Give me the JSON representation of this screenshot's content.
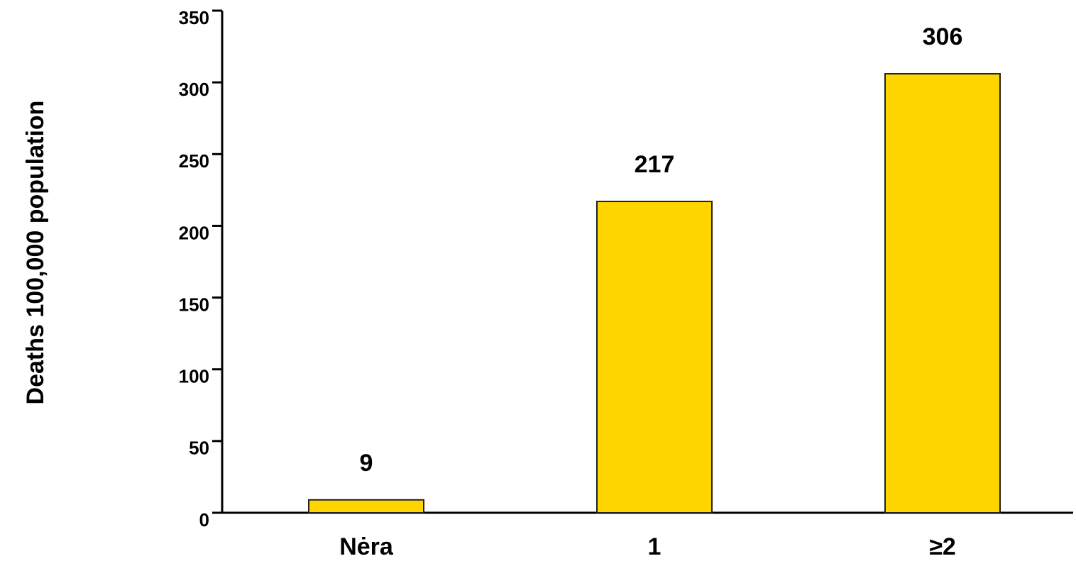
{
  "chart_data": {
    "type": "bar",
    "y_label": "Deaths 100,000 population",
    "categories": [
      "Nėra",
      "1",
      "≥2"
    ],
    "values": [
      9,
      217,
      306
    ],
    "color": "#ffd500",
    "ylim": [
      0,
      350
    ],
    "yticks": [
      0,
      50,
      100,
      150,
      200,
      250,
      300,
      350
    ],
    "grid": false
  }
}
